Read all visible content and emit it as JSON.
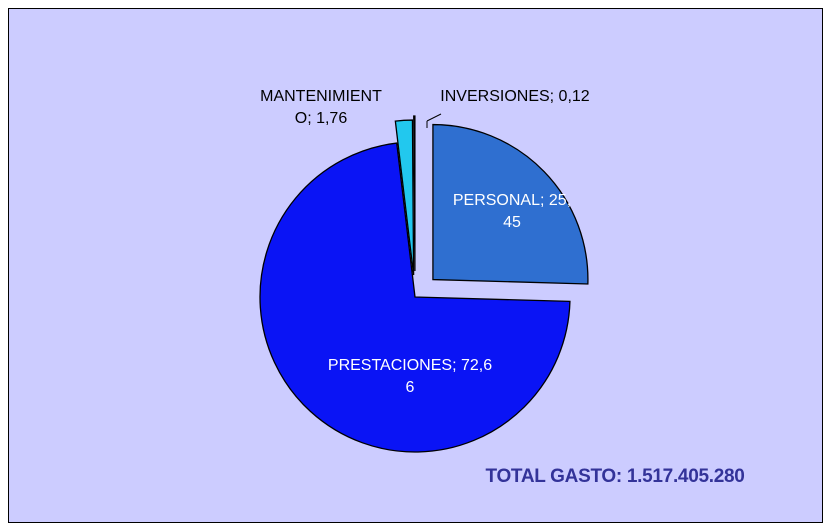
{
  "chart_data": {
    "type": "pie",
    "values": [
      25.45,
      72.66,
      1.76,
      0.12
    ],
    "value_labels": [
      "PERSONAL; 25,45",
      "PRESTACIONES; 72,66",
      "MANTENIMIENTO; 1,76",
      "INVERSIONES; 0,12"
    ],
    "colors": [
      "#2f6fd0",
      "#0a14f5",
      "#22c8ee",
      "#33ccff"
    ],
    "annotation": "TOTAL GASTO: 1.517.405.280"
  }
}
